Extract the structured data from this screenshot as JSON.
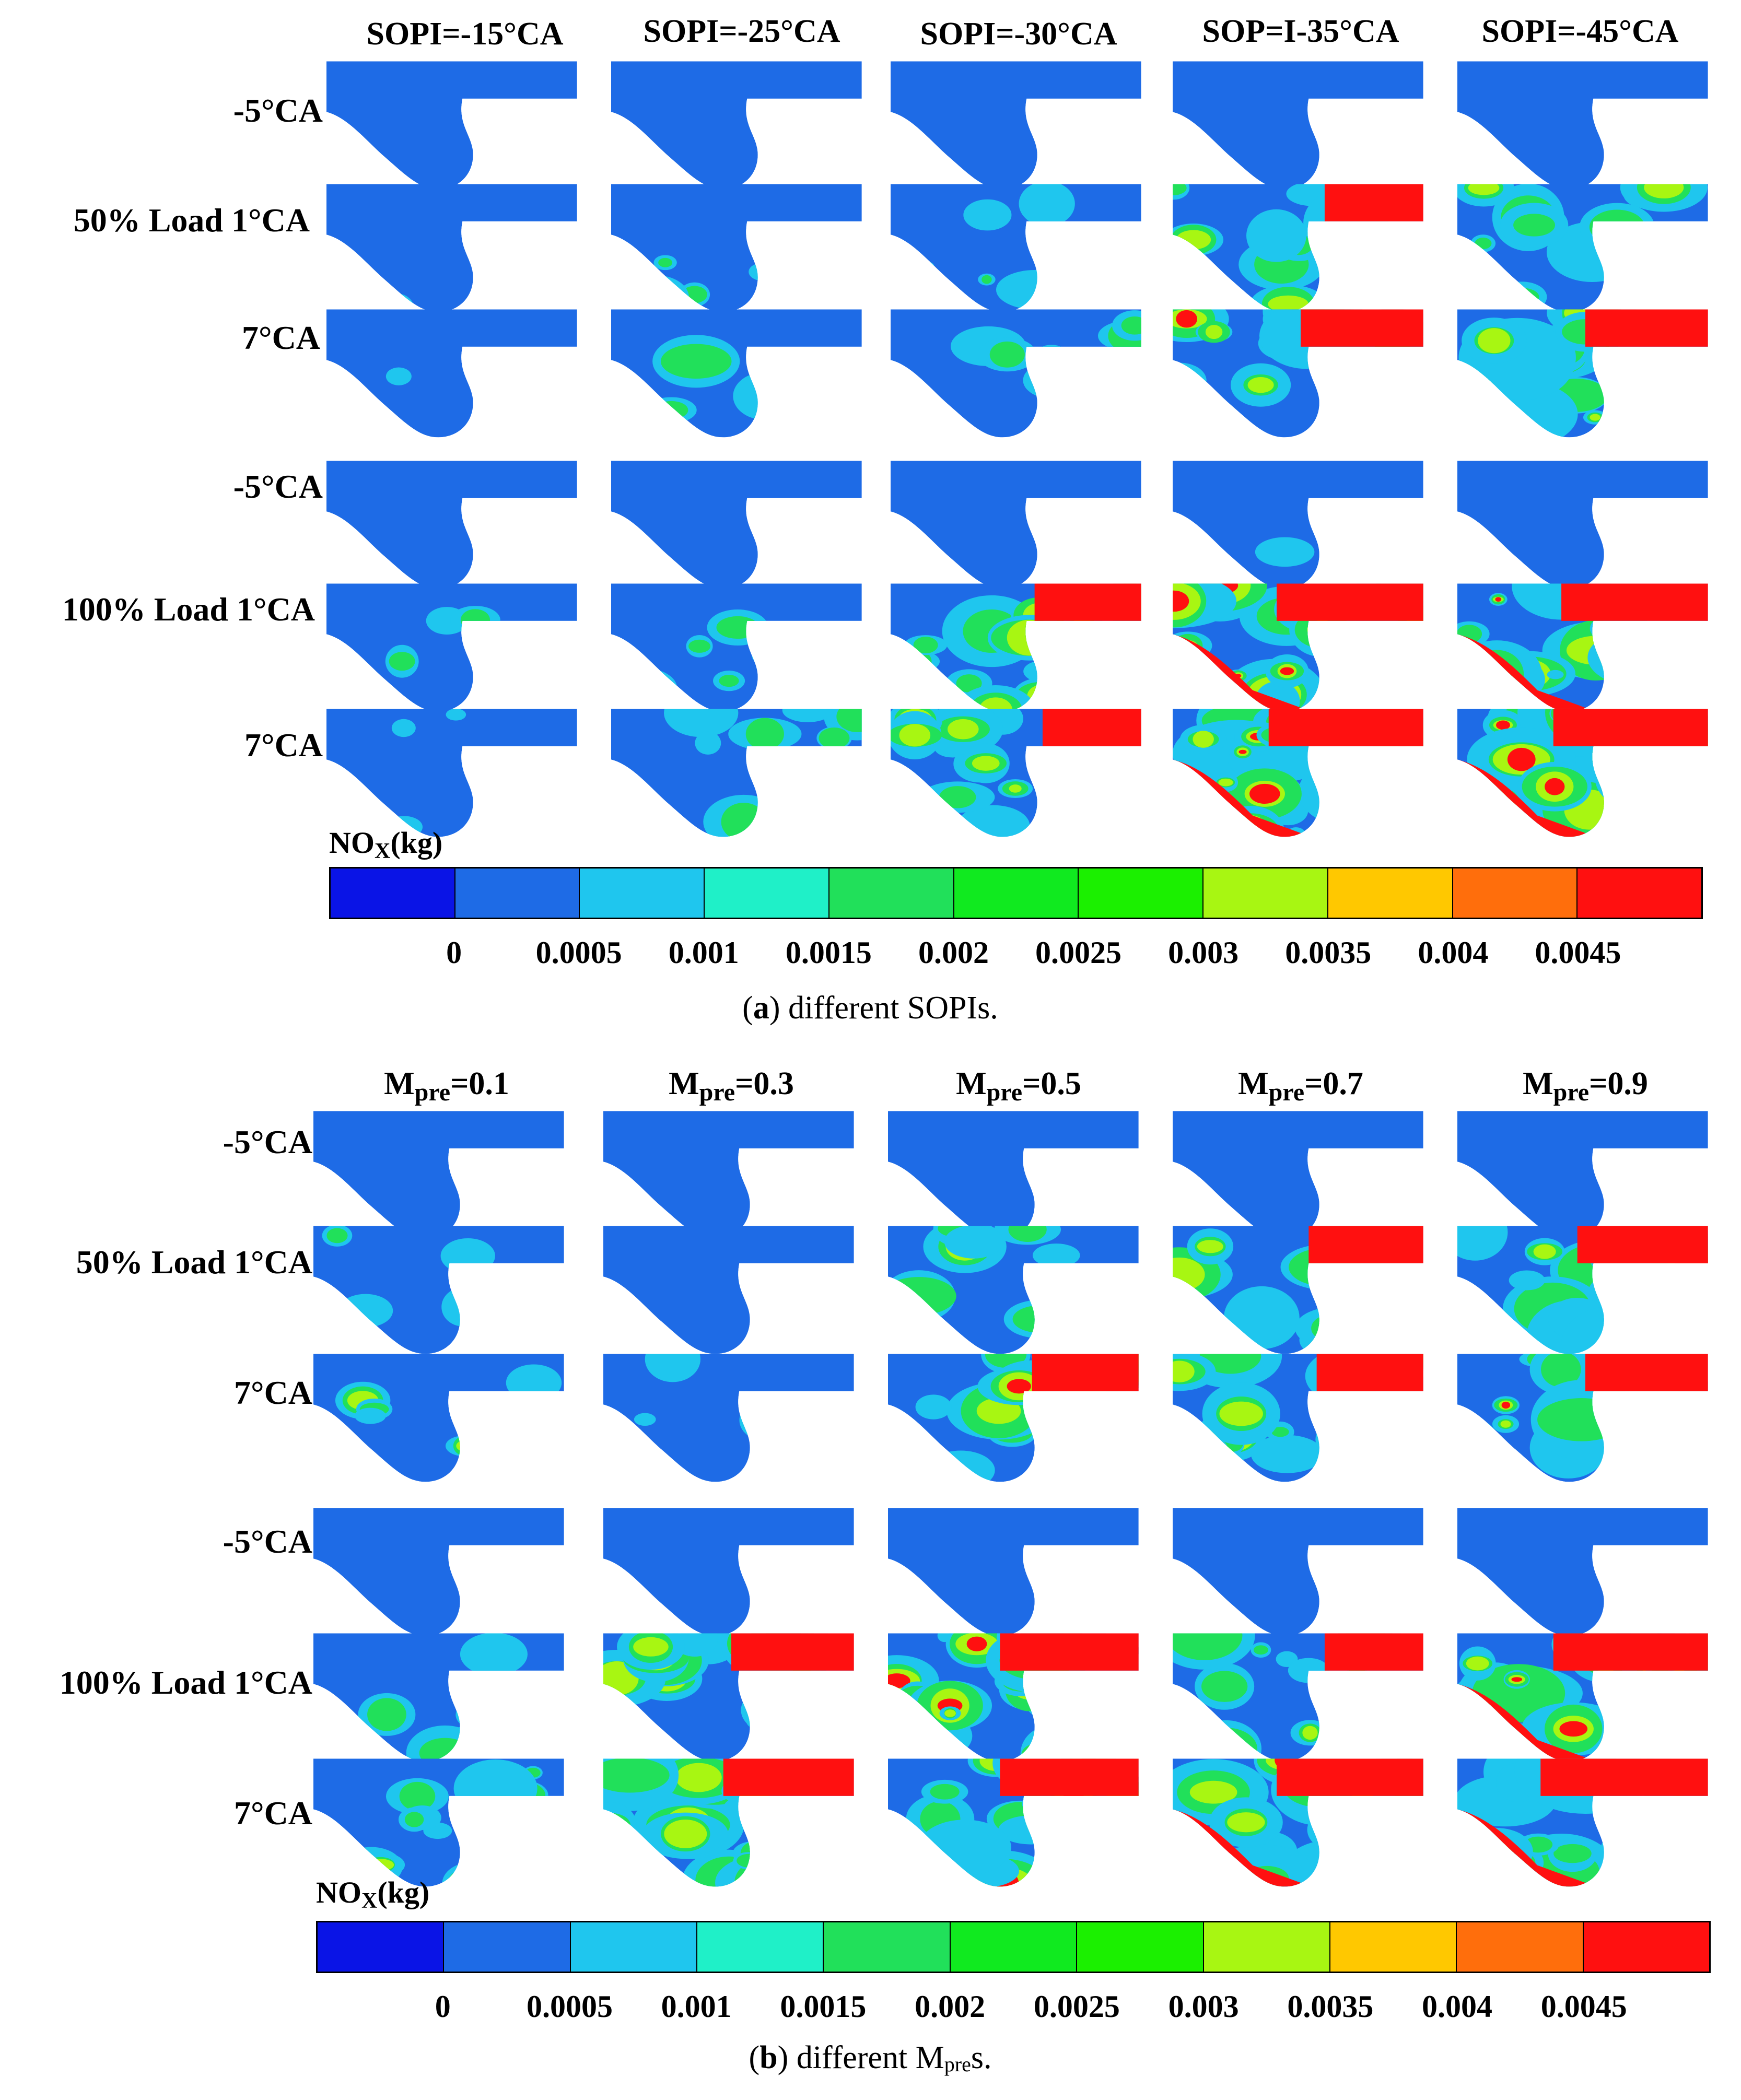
{
  "palette": {
    "c0": "#0a14e6",
    "c1": "#1e6be6",
    "c2": "#1fc6ee",
    "c3": "#1ff0c8",
    "c4": "#21e05a",
    "c5": "#10ea1f",
    "c6": "#1bf000",
    "c7": "#a8f612",
    "c8": "#ffc800",
    "c9": "#ff6e0c",
    "c10": "#ff1010"
  },
  "legend_colors": [
    "#0a14e6",
    "#1e6be6",
    "#1fc6ee",
    "#1ff0c8",
    "#21e05a",
    "#10ea1f",
    "#1bf000",
    "#a8f612",
    "#ffc800",
    "#ff6e0c",
    "#ff1010"
  ],
  "legend_ticks": [
    "0",
    "0.0005",
    "0.001",
    "0.0015",
    "0.002",
    "0.0025",
    "0.003",
    "0.0035",
    "0.004",
    "0.0045"
  ],
  "panel_a": {
    "col_headers": [
      "SOPI=-15°CA",
      "SOPI=-25°CA",
      "SOPI=-30°CA",
      "SOP=I-35°CA",
      "SOPI=-45°CA"
    ],
    "rows": {
      "r1": "-5°CA",
      "r2": "50% Load  1°CA",
      "r3": "7°CA",
      "r4": "-5°CA",
      "r5": "100% Load  1°CA",
      "r6": "7°CA"
    },
    "legend_title_main": "NO",
    "legend_title_sub": "X",
    "legend_title_unit": "(kg)",
    "caption_letter": "a",
    "caption_text": " different SOPIs."
  },
  "panel_b": {
    "col_headers": [
      {
        "m": "M",
        "sub": "pre",
        "val": "=0.1"
      },
      {
        "m": "M",
        "sub": "pre",
        "val": "=0.3"
      },
      {
        "m": "M",
        "sub": "pre",
        "val": "=0.5"
      },
      {
        "m": "M",
        "sub": "pre",
        "val": "=0.7"
      },
      {
        "m": "M",
        "sub": "pre",
        "val": "=0.9"
      }
    ],
    "rows": {
      "r1": "-5°CA",
      "r2": "50% Load 1°CA",
      "r3": "7°CA",
      "r4": "-5°CA",
      "r5": "100% Load 1°CA",
      "r6": "7°CA"
    },
    "legend_title_main": "NO",
    "legend_title_sub": "X",
    "legend_title_unit": "(kg)",
    "caption_letter": "b",
    "caption_text_1": " different M",
    "caption_sub": "pre",
    "caption_text_2": "s."
  }
}
